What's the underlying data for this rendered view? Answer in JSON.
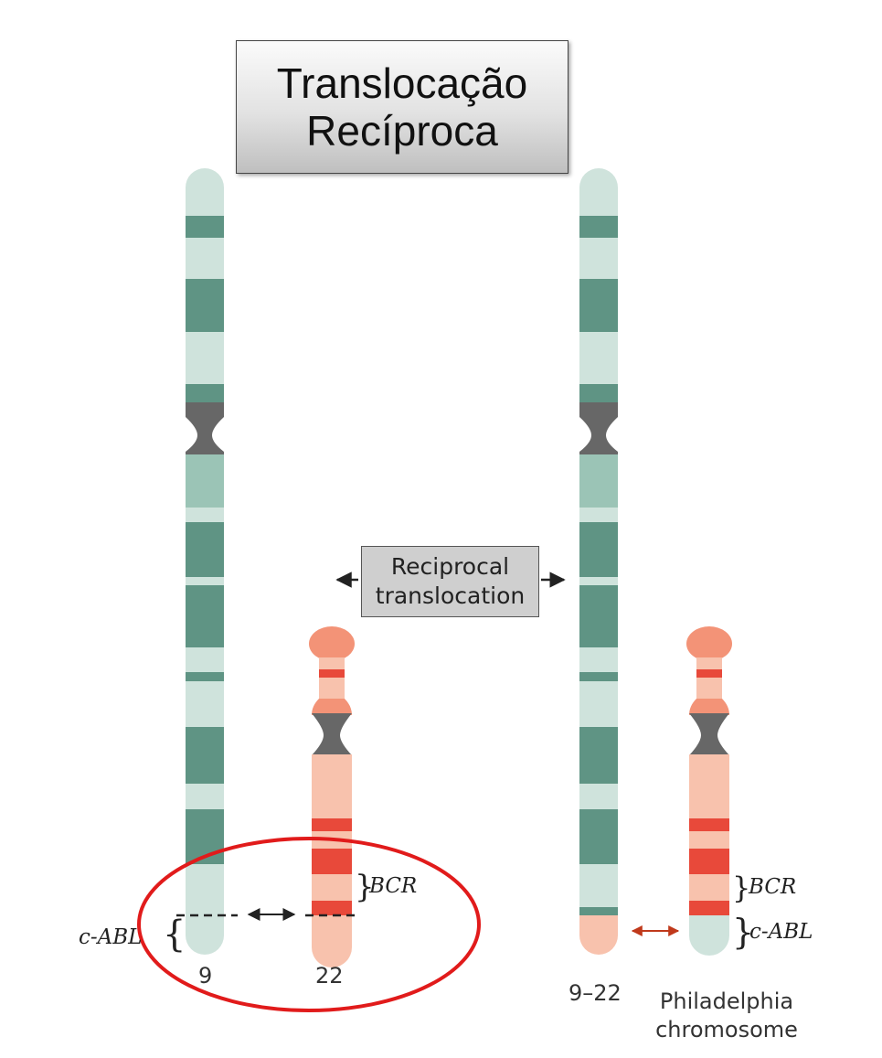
{
  "title": {
    "line1": "Translocação",
    "line2": "Recíproca"
  },
  "center_label": {
    "line1": "Reciprocal",
    "line2": "translocation"
  },
  "chromosomes": {
    "chr9": {
      "number": "9"
    },
    "chr22": {
      "number": "22"
    },
    "chr9_22": {
      "number": "9–22"
    },
    "philadelphia": {
      "line1": "Philadelphia",
      "line2": "chromosome"
    }
  },
  "genes": {
    "left_abl": "c-ABL",
    "left_bcr": "BCR",
    "right_bcr": "BCR",
    "right_abl": "c-ABL"
  },
  "colors": {
    "chr9_light": "#cfe3dc",
    "chr9_mid": "#9bc4b6",
    "chr9_dark": "#5f9484",
    "chr22_light": "#f8c2ad",
    "chr22_mid": "#f39377",
    "chr22_dark": "#e8493a",
    "centromere": "#676767",
    "highlight_ring": "#e11b1b",
    "arrow_red": "#c0391b"
  }
}
